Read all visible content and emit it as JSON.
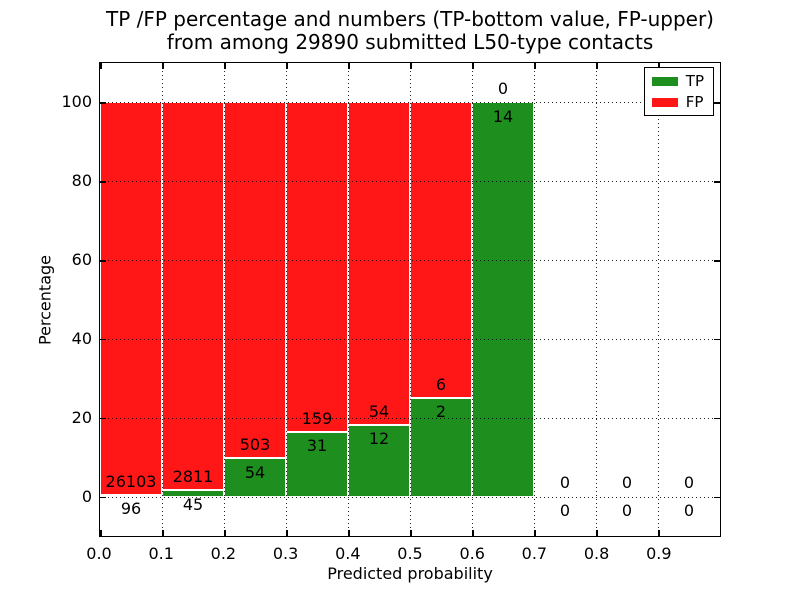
{
  "chart_data": {
    "type": "bar",
    "stacked": true,
    "title_line1": "TP /FP percentage and numbers (TP-bottom value, FP-upper)",
    "title_line2": "from among 29890 submitted L50-type contacts",
    "total_submitted": 29890,
    "xlabel": "Predicted probability",
    "ylabel": "Percentage",
    "xlim": [
      0.0,
      1.0
    ],
    "ylim": [
      -10,
      110
    ],
    "xticks": [
      "0.0",
      "0.1",
      "0.2",
      "0.3",
      "0.4",
      "0.5",
      "0.6",
      "0.7",
      "0.8",
      "0.9"
    ],
    "yticks": [
      0,
      20,
      40,
      60,
      80,
      100
    ],
    "grid": "dotted",
    "legend": {
      "position": "upper right",
      "entries": [
        {
          "label": "TP",
          "color": "#1e8e1e"
        },
        {
          "label": "FP",
          "color": "#ff1717"
        }
      ]
    },
    "colors": {
      "tp": "#1e8e1e",
      "fp": "#ff1717",
      "background": "#ffffff",
      "grid": "#000000"
    },
    "bins": [
      {
        "range": [
          0.0,
          0.1
        ],
        "tp": 96,
        "fp": 26103,
        "tp_pct": 0.37,
        "fp_pct": 99.63
      },
      {
        "range": [
          0.1,
          0.2
        ],
        "tp": 45,
        "fp": 2811,
        "tp_pct": 1.58,
        "fp_pct": 98.42
      },
      {
        "range": [
          0.2,
          0.3
        ],
        "tp": 54,
        "fp": 503,
        "tp_pct": 9.69,
        "fp_pct": 90.31
      },
      {
        "range": [
          0.3,
          0.4
        ],
        "tp": 31,
        "fp": 159,
        "tp_pct": 16.32,
        "fp_pct": 83.68
      },
      {
        "range": [
          0.4,
          0.5
        ],
        "tp": 12,
        "fp": 54,
        "tp_pct": 18.18,
        "fp_pct": 81.82
      },
      {
        "range": [
          0.5,
          0.6
        ],
        "tp": 2,
        "fp": 6,
        "tp_pct": 25.0,
        "fp_pct": 75.0
      },
      {
        "range": [
          0.6,
          0.7
        ],
        "tp": 14,
        "fp": 0,
        "tp_pct": 100.0,
        "fp_pct": 0.0
      },
      {
        "range": [
          0.7,
          0.8
        ],
        "tp": 0,
        "fp": 0,
        "tp_pct": 0,
        "fp_pct": 0
      },
      {
        "range": [
          0.8,
          0.9
        ],
        "tp": 0,
        "fp": 0,
        "tp_pct": 0,
        "fp_pct": 0
      },
      {
        "range": [
          0.9,
          1.0
        ],
        "tp": 0,
        "fp": 0,
        "tp_pct": 0,
        "fp_pct": 0
      }
    ],
    "label_offset_pct": {
      "fp_above": 3.4,
      "tp_below": 3.6
    }
  }
}
